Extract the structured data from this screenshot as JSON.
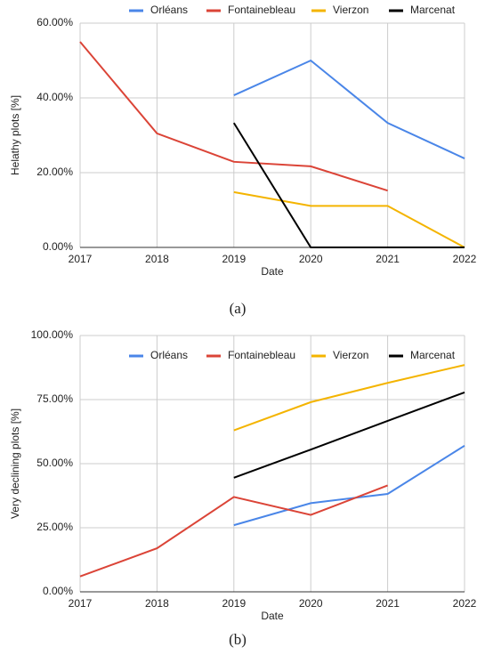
{
  "chart_data": [
    {
      "type": "line",
      "caption": "(a)",
      "xlabel": "Date",
      "ylabel": "Helathy plots [%]",
      "x": [
        2017,
        2018,
        2019,
        2020,
        2021,
        2022
      ],
      "xlim": [
        2017,
        2022
      ],
      "xticks": [
        2017,
        2018,
        2019,
        2020,
        2021,
        2022
      ],
      "ylim": [
        0,
        60
      ],
      "yticks": [
        {
          "value": 0,
          "label": "0.00%"
        },
        {
          "value": 20,
          "label": "20.00%"
        },
        {
          "value": 40,
          "label": "40.00%"
        },
        {
          "value": 60,
          "label": "60.00%"
        }
      ],
      "grid": true,
      "legend": "top",
      "series": [
        {
          "name": "Orléans",
          "color": "#4a86e8",
          "values": [
            null,
            null,
            40.7,
            50,
            33.3,
            23.8
          ]
        },
        {
          "name": "Fontainebleau",
          "color": "#db4437",
          "values": [
            55,
            30.5,
            22.9,
            21.7,
            15.2,
            null
          ]
        },
        {
          "name": "Vierzon",
          "color": "#f4b400",
          "values": [
            null,
            null,
            14.8,
            11.1,
            11.1,
            0
          ]
        },
        {
          "name": "Marcenat",
          "color": "#000000",
          "values": [
            null,
            null,
            33.3,
            0,
            0,
            0
          ]
        }
      ]
    },
    {
      "type": "line",
      "caption": "(b)",
      "xlabel": "Date",
      "ylabel": "Very declining plots [%]",
      "x": [
        2017,
        2018,
        2019,
        2020,
        2021,
        2022
      ],
      "xlim": [
        2017,
        2022
      ],
      "xticks": [
        2017,
        2018,
        2019,
        2020,
        2021,
        2022
      ],
      "ylim": [
        0,
        100
      ],
      "yticks": [
        {
          "value": 0,
          "label": "0.00%"
        },
        {
          "value": 25,
          "label": "25.00%"
        },
        {
          "value": 50,
          "label": "50.00%"
        },
        {
          "value": 75,
          "label": "75.00%"
        },
        {
          "value": 100,
          "label": "100.00%"
        }
      ],
      "grid": true,
      "legend": "top",
      "series": [
        {
          "name": "Orléans",
          "color": "#4a86e8",
          "values": [
            null,
            null,
            26,
            34.6,
            38.2,
            57
          ]
        },
        {
          "name": "Fontainebleau",
          "color": "#db4437",
          "values": [
            6,
            17,
            37,
            30,
            41.5,
            null
          ]
        },
        {
          "name": "Vierzon",
          "color": "#f4b400",
          "values": [
            null,
            null,
            63,
            74,
            81.5,
            88.5
          ]
        },
        {
          "name": "Marcenat",
          "color": "#000000",
          "values": [
            null,
            null,
            44.5,
            55.5,
            66.7,
            77.8
          ]
        }
      ]
    }
  ]
}
